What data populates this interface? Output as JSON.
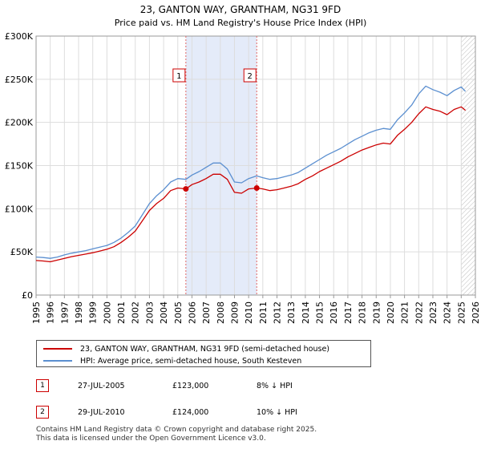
{
  "chart_data": {
    "type": "line",
    "title": "23, GANTON WAY, GRANTHAM, NG31 9FD",
    "subtitle": "Price paid vs. HM Land Registry's House Price Index (HPI)",
    "xlabel": "",
    "ylabel": "",
    "xlim": [
      1995,
      2026
    ],
    "ylim": [
      0,
      300000
    ],
    "x_ticks": [
      "1995",
      "1996",
      "1997",
      "1998",
      "1999",
      "2000",
      "2001",
      "2002",
      "2003",
      "2004",
      "2005",
      "2006",
      "2007",
      "2008",
      "2009",
      "2010",
      "2011",
      "2012",
      "2013",
      "2014",
      "2015",
      "2016",
      "2017",
      "2018",
      "2019",
      "2020",
      "2021",
      "2022",
      "2023",
      "2024",
      "2025",
      "2026"
    ],
    "y_ticks": [
      {
        "value": 0,
        "label": "£0"
      },
      {
        "value": 50000,
        "label": "£50K"
      },
      {
        "value": 100000,
        "label": "£100K"
      },
      {
        "value": 150000,
        "label": "£150K"
      },
      {
        "value": 200000,
        "label": "£200K"
      },
      {
        "value": 250000,
        "label": "£250K"
      },
      {
        "value": 300000,
        "label": "£300K"
      }
    ],
    "grid": true,
    "shaded_period": [
      2005.57,
      2010.57
    ],
    "future_hatch_from": 2025.0,
    "series": [
      {
        "name": "23, GANTON WAY, GRANTHAM, NG31 9FD (semi-detached house)",
        "color": "#cc0000",
        "x": [
          1995.0,
          1995.5,
          1996.0,
          1996.5,
          1997.0,
          1997.5,
          1998.0,
          1998.5,
          1999.0,
          1999.5,
          2000.0,
          2000.5,
          2001.0,
          2001.5,
          2002.0,
          2002.5,
          2003.0,
          2003.5,
          2004.0,
          2004.5,
          2005.0,
          2005.57,
          2006.0,
          2006.5,
          2007.0,
          2007.5,
          2008.0,
          2008.5,
          2009.0,
          2009.5,
          2010.0,
          2010.57,
          2011.0,
          2011.5,
          2012.0,
          2012.5,
          2013.0,
          2013.5,
          2014.0,
          2014.5,
          2015.0,
          2015.5,
          2016.0,
          2016.5,
          2017.0,
          2017.5,
          2018.0,
          2018.5,
          2019.0,
          2019.5,
          2020.0,
          2020.5,
          2021.0,
          2021.5,
          2022.0,
          2022.5,
          2023.0,
          2023.5,
          2024.0,
          2024.5,
          2025.0,
          2025.3
        ],
        "values": [
          40000,
          39500,
          38500,
          40500,
          42500,
          44500,
          46000,
          47500,
          49000,
          51000,
          53000,
          56000,
          61000,
          67000,
          74000,
          86000,
          98000,
          106000,
          112000,
          121000,
          124000,
          123000,
          128000,
          131000,
          135000,
          140000,
          140000,
          134000,
          119000,
          118000,
          123000,
          124000,
          123000,
          121000,
          122000,
          124000,
          126000,
          129000,
          134000,
          138000,
          143000,
          147000,
          151000,
          155000,
          160000,
          164000,
          168000,
          171000,
          174000,
          176000,
          175000,
          185000,
          192000,
          200000,
          210000,
          218000,
          215000,
          213000,
          209000,
          215000,
          218000,
          214000
        ]
      },
      {
        "name": "HPI: Average price, semi-detached house, South Kesteven",
        "color": "#5b8fd0",
        "x": [
          1995.0,
          1995.5,
          1996.0,
          1996.5,
          1997.0,
          1997.5,
          1998.0,
          1998.5,
          1999.0,
          1999.5,
          2000.0,
          2000.5,
          2001.0,
          2001.5,
          2002.0,
          2002.5,
          2003.0,
          2003.5,
          2004.0,
          2004.5,
          2005.0,
          2005.57,
          2006.0,
          2006.5,
          2007.0,
          2007.5,
          2008.0,
          2008.5,
          2009.0,
          2009.5,
          2010.0,
          2010.57,
          2011.0,
          2011.5,
          2012.0,
          2012.5,
          2013.0,
          2013.5,
          2014.0,
          2014.5,
          2015.0,
          2015.5,
          2016.0,
          2016.5,
          2017.0,
          2017.5,
          2018.0,
          2018.5,
          2019.0,
          2019.5,
          2020.0,
          2020.5,
          2021.0,
          2021.5,
          2022.0,
          2022.5,
          2023.0,
          2023.5,
          2024.0,
          2024.5,
          2025.0,
          2025.3
        ],
        "values": [
          44000,
          43500,
          42500,
          44000,
          46500,
          48500,
          50000,
          51500,
          53500,
          55500,
          57500,
          61000,
          66000,
          72500,
          80000,
          93000,
          106000,
          115000,
          122000,
          131000,
          135000,
          134000,
          139000,
          143000,
          148000,
          153000,
          153000,
          146000,
          131000,
          130000,
          135000,
          138000,
          136000,
          134000,
          135000,
          137000,
          139000,
          142000,
          147000,
          152000,
          157000,
          162000,
          166000,
          170000,
          175000,
          180000,
          184000,
          188000,
          191000,
          193000,
          192000,
          203000,
          211000,
          220000,
          233000,
          242000,
          238000,
          235000,
          231000,
          237000,
          241000,
          236000
        ]
      }
    ],
    "markers": [
      {
        "id": "1",
        "x": 2005.57,
        "y": 123000
      },
      {
        "id": "2",
        "x": 2010.57,
        "y": 124000
      }
    ]
  },
  "legend": [
    {
      "label": "23, GANTON WAY, GRANTHAM, NG31 9FD (semi-detached house)",
      "color": "#cc0000"
    },
    {
      "label": "HPI: Average price, semi-detached house, South Kesteven",
      "color": "#5b8fd0"
    }
  ],
  "transactions": [
    {
      "id": "1",
      "date": "27-JUL-2005",
      "price": "£123,000",
      "hpi": "8% ↓ HPI"
    },
    {
      "id": "2",
      "date": "29-JUL-2010",
      "price": "£124,000",
      "hpi": "10% ↓ HPI"
    }
  ],
  "footer": {
    "line1": "Contains HM Land Registry data © Crown copyright and database right 2025.",
    "line2": "This data is licensed under the Open Government Licence v3.0."
  }
}
